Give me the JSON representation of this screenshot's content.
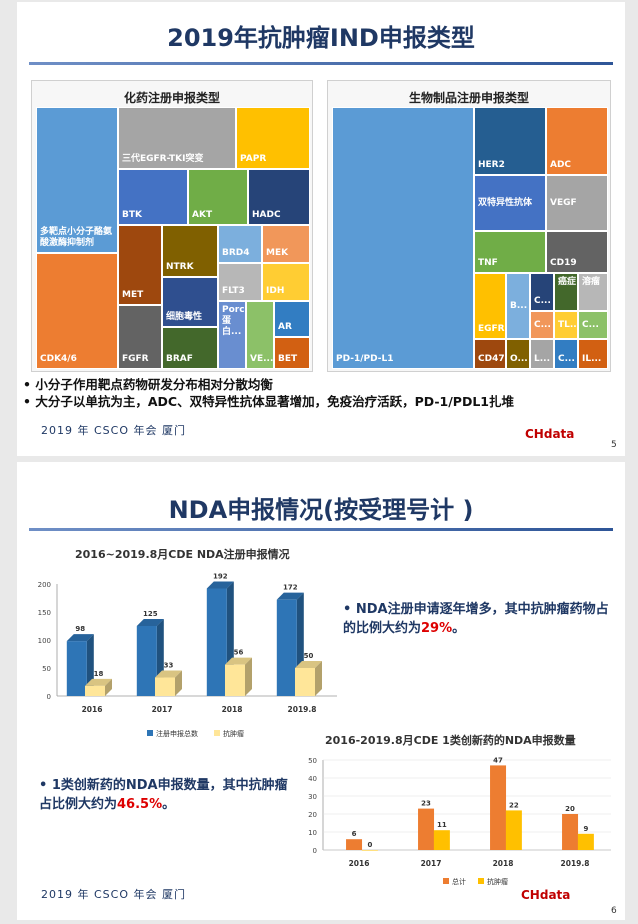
{
  "slide1": {
    "title": "2019年抗肿瘤IND申报类型",
    "left_panel_title": "化药注册申报类型",
    "right_panel_title": "生物制品注册申报类型",
    "bullets": [
      "小分子作用靶点药物研发分布相对分散均衡",
      "大分子以单抗为主，ADC、双特异性抗体显著增加，免疫治疗活跃，PD-1/PDL1扎堆"
    ],
    "footer": "2019 年 CSCO 年会  厦门",
    "page_number": "5",
    "logo_text": "CHdata"
  },
  "chem_treemap": [
    {
      "label": "多靶点小分子酪氨酸激酶抑制剂",
      "color": "#5b9bd5"
    },
    {
      "label": "CDK4/6",
      "color": "#ed7d31"
    },
    {
      "label": "三代EGFR-TKI突变",
      "color": "#a5a5a5"
    },
    {
      "label": "PAPR",
      "color": "#ffc000"
    },
    {
      "label": "BTK",
      "color": "#4472c4"
    },
    {
      "label": "AKT",
      "color": "#70ad47"
    },
    {
      "label": "HADC",
      "color": "#264478"
    },
    {
      "label": "MET",
      "color": "#9e480e"
    },
    {
      "label": "NTRK",
      "color": "#806000"
    },
    {
      "label": "BRD4",
      "color": "#7cafdd"
    },
    {
      "label": "MEK",
      "color": "#f1975a"
    },
    {
      "label": "FGFR",
      "color": "#636363"
    },
    {
      "label": "细胞毒性",
      "color": "#2f4f8f"
    },
    {
      "label": "FLT3",
      "color": "#b7b7b7"
    },
    {
      "label": "IDH",
      "color": "#ffcd33"
    },
    {
      "label": "BRAF",
      "color": "#43682b"
    },
    {
      "label": "Porcupine蛋白...",
      "color": "#698ed0"
    },
    {
      "label": "VE...",
      "color": "#8cc168"
    },
    {
      "label": "AR",
      "color": "#327dc2"
    },
    {
      "label": "BET",
      "color": "#d26012"
    }
  ],
  "bio_treemap": [
    {
      "label": "PD-1/PD-L1",
      "color": "#5b9bd5"
    },
    {
      "label": "HER2",
      "color": "#255e91"
    },
    {
      "label": "ADC",
      "color": "#ed7d31"
    },
    {
      "label": "双特异性抗体",
      "color": "#4472c4"
    },
    {
      "label": "VEGF",
      "color": "#a5a5a5"
    },
    {
      "label": "TNF",
      "color": "#70ad47"
    },
    {
      "label": "CD19",
      "color": "#636363"
    },
    {
      "label": "EGFR",
      "color": "#ffc000"
    },
    {
      "label": "B...",
      "color": "#7cafdd"
    },
    {
      "label": "C...",
      "color": "#264478"
    },
    {
      "label": "癌症",
      "color": "#43682b"
    },
    {
      "label": "溶瘤",
      "color": "#b7b7b7"
    },
    {
      "label": "C...",
      "color": "#f1975a"
    },
    {
      "label": "TL...",
      "color": "#ffcd33"
    },
    {
      "label": "C...",
      "color": "#8cc168"
    },
    {
      "label": "CD47",
      "color": "#9e480e"
    },
    {
      "label": "O...",
      "color": "#806000"
    },
    {
      "label": "L...",
      "color": "#a5a5a5"
    },
    {
      "label": "C...",
      "color": "#327dc2"
    },
    {
      "label": "IL...",
      "color": "#d26012"
    }
  ],
  "slide2": {
    "title": "NDA申报情况(按受理号计 )",
    "footer": "2019 年 CSCO 年会  厦门",
    "page_number": "6",
    "logo_text": "CHdata",
    "note1_pre": "NDA注册申请逐年增多，其中抗肿瘤药物占的比例大约为",
    "note1_value": "29%",
    "note1_post": "。",
    "note2_pre": "1类创新药的NDA申报数量，其中抗肿瘤占比例大约为",
    "note2_value": "46.5%",
    "note2_post": "。"
  },
  "chart_data": [
    {
      "type": "bar",
      "title": "2016~2019.8月CDE  NDA注册申报情况",
      "categories": [
        "2016",
        "2017",
        "2018",
        "2019.8"
      ],
      "series": [
        {
          "name": "注册申报总数",
          "values": [
            98,
            125,
            192,
            172
          ],
          "color": "#2e75b6"
        },
        {
          "name": "抗肿瘤",
          "values": [
            18,
            33,
            56,
            50
          ],
          "color": "#ffe699"
        }
      ],
      "yticks": [
        "0",
        "50",
        "100",
        "150",
        "200"
      ],
      "ylim": [
        0,
        200
      ],
      "legend": "bottom"
    },
    {
      "type": "bar",
      "title": "2016-2019.8月CDE 1类创新药的NDA申报数量",
      "categories": [
        "2016",
        "2017",
        "2018",
        "2019.8"
      ],
      "series": [
        {
          "name": "总计",
          "values": [
            6,
            23,
            47,
            20
          ],
          "color": "#ed7d31"
        },
        {
          "name": "抗肿瘤",
          "values": [
            0,
            11,
            22,
            9
          ],
          "color": "#ffc000"
        }
      ],
      "yticks": [
        "0",
        "10",
        "20",
        "30",
        "40",
        "50"
      ],
      "ylim": [
        0,
        50
      ],
      "legend": "bottom"
    }
  ]
}
